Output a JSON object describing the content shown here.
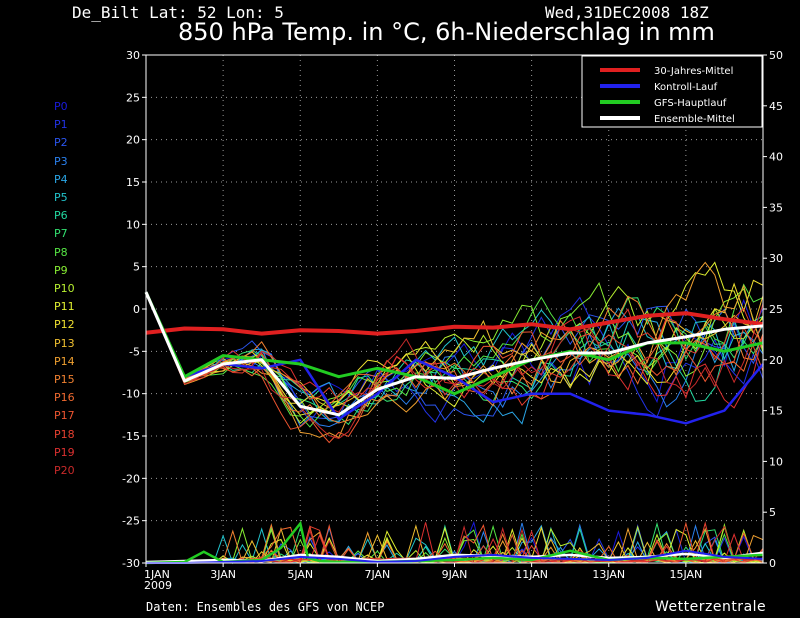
{
  "header": {
    "station": "De_Bilt   Lat: 52 Lon: 5",
    "timestamp": "Wed,31DEC2008 18Z",
    "title": "850 hPa Temp. in °C, 6h-Niederschlag in mm"
  },
  "footer": {
    "source": "Daten: Ensembles des GFS von NCEP",
    "brand": "Wetterzentrale"
  },
  "members": [
    {
      "label": "P0",
      "color": "#1a1adc"
    },
    {
      "label": "P1",
      "color": "#2233e6"
    },
    {
      "label": "P2",
      "color": "#2a55ee"
    },
    {
      "label": "P3",
      "color": "#2a80ee"
    },
    {
      "label": "P4",
      "color": "#2aa6e6"
    },
    {
      "label": "P5",
      "color": "#22c4cc"
    },
    {
      "label": "P6",
      "color": "#22d8a0"
    },
    {
      "label": "P7",
      "color": "#33e070"
    },
    {
      "label": "P8",
      "color": "#55e644"
    },
    {
      "label": "P9",
      "color": "#88ee33"
    },
    {
      "label": "P10",
      "color": "#b8f030"
    },
    {
      "label": "P11",
      "color": "#e0f030"
    },
    {
      "label": "P12",
      "color": "#f0e030"
    },
    {
      "label": "P13",
      "color": "#f0c030"
    },
    {
      "label": "P14",
      "color": "#f0a030"
    },
    {
      "label": "P15",
      "color": "#f08030"
    },
    {
      "label": "P16",
      "color": "#f06a30"
    },
    {
      "label": "P17",
      "color": "#ee5530"
    },
    {
      "label": "P18",
      "color": "#e64030"
    },
    {
      "label": "P19",
      "color": "#dc3030"
    },
    {
      "label": "P20",
      "color": "#c82a2a"
    }
  ],
  "chart_data": {
    "type": "line",
    "title": "850 hPa Temp. in °C, 6h-Niederschlag in mm",
    "xlim": [
      0,
      16
    ],
    "x_ticks": [
      {
        "x": 0,
        "label": "1JAN"
      },
      {
        "x": 2,
        "label": "3JAN"
      },
      {
        "x": 4,
        "label": "5JAN"
      },
      {
        "x": 6,
        "label": "7JAN"
      },
      {
        "x": 8,
        "label": "9JAN"
      },
      {
        "x": 10,
        "label": "11JAN"
      },
      {
        "x": 12,
        "label": "13JAN"
      },
      {
        "x": 14,
        "label": "15JAN"
      }
    ],
    "x_sublabel": "2009",
    "y_left": {
      "ylim": [
        -30,
        30
      ],
      "ticks": [
        30,
        25,
        20,
        15,
        10,
        5,
        0,
        -5,
        -10,
        -15,
        -20,
        -25,
        -30
      ]
    },
    "y_right": {
      "ylim": [
        0,
        50
      ],
      "ticks": [
        50,
        45,
        40,
        35,
        30,
        25,
        20,
        15,
        10,
        5,
        0
      ]
    },
    "grid": true,
    "legend_position": "top-right",
    "series": [
      {
        "name": "30-Jahres-Mittel",
        "color": "#e02020",
        "width": 4,
        "x": [
          0,
          1,
          2,
          3,
          4,
          5,
          6,
          7,
          8,
          9,
          10,
          11,
          12,
          13,
          14,
          15,
          16
        ],
        "y": [
          -2.8,
          -2.3,
          -2.4,
          -2.9,
          -2.5,
          -2.6,
          -2.9,
          -2.6,
          -2.1,
          -2.2,
          -1.8,
          -2.4,
          -1.6,
          -0.8,
          -0.5,
          -1.2,
          -1.8
        ]
      },
      {
        "name": "Kontroll-Lauf",
        "color": "#2222ee",
        "width": 2.5,
        "x": [
          0,
          1,
          2,
          3,
          4,
          5,
          6,
          7,
          8,
          9,
          10,
          11,
          12,
          13,
          14,
          15,
          16
        ],
        "y": [
          2,
          -8,
          -6.5,
          -7,
          -6,
          -13,
          -10,
          -6,
          -8,
          -11,
          -10,
          -10,
          -12,
          -12.5,
          -13.5,
          -12,
          -6.5
        ]
      },
      {
        "name": "GFS-Hauptlauf",
        "color": "#22cc22",
        "width": 3,
        "x": [
          0,
          1,
          2,
          3,
          4,
          5,
          6,
          7,
          8,
          9,
          10,
          11,
          12,
          13,
          14,
          15,
          16
        ],
        "y": [
          2,
          -8,
          -5.5,
          -6,
          -6.5,
          -8,
          -7,
          -8,
          -10,
          -8,
          -6,
          -5,
          -6,
          -4,
          -4,
          -5,
          -4
        ]
      },
      {
        "name": "Ensemble-Mittel",
        "color": "#ffffff",
        "width": 3,
        "x": [
          0,
          1,
          2,
          3,
          4,
          5,
          6,
          7,
          8,
          9,
          10,
          11,
          12,
          13,
          14,
          15,
          16
        ],
        "y": [
          2,
          -8.5,
          -6.5,
          -6,
          -11.5,
          -12.5,
          -9.5,
          -8,
          -8.2,
          -7,
          -6,
          -5.2,
          -5.2,
          -4,
          -3.3,
          -2.4,
          -2
        ]
      }
    ],
    "precip_series": [
      {
        "name": "Ensemble-Mittel",
        "color": "#ffffff",
        "width": 2.5,
        "x": [
          0,
          1,
          2,
          3,
          4,
          5,
          6,
          7,
          8,
          9,
          10,
          11,
          12,
          13,
          14,
          15,
          16
        ],
        "y": [
          0.1,
          0.2,
          0.3,
          0.2,
          0.8,
          0.6,
          0.2,
          0.4,
          0.8,
          0.7,
          0.6,
          0.8,
          0.5,
          0.6,
          0.9,
          0.5,
          1.0
        ]
      },
      {
        "name": "GFS-Hauptlauf",
        "color": "#22cc22",
        "width": 2.5,
        "x": [
          0,
          1,
          1.5,
          2,
          3,
          3.5,
          4,
          4.2,
          4.5,
          5,
          6,
          7,
          8,
          9,
          10,
          11,
          12,
          13,
          14,
          15,
          16
        ],
        "y": [
          0,
          0.1,
          1.1,
          0.1,
          0.3,
          1.5,
          3.9,
          0.5,
          0.2,
          0.1,
          0.1,
          0.2,
          0.3,
          0.5,
          0.3,
          1.2,
          0.3,
          0.5,
          0.4,
          0.6,
          0.8
        ]
      },
      {
        "name": "Kontroll-Lauf",
        "color": "#2222ee",
        "width": 2,
        "x": [
          0,
          1,
          2,
          3,
          4,
          5,
          6,
          7,
          8,
          9,
          10,
          11,
          12,
          13,
          14,
          15,
          16
        ],
        "y": [
          0,
          0,
          0.1,
          0.2,
          0.6,
          0.4,
          0.1,
          0.2,
          0.6,
          0.8,
          0.5,
          0.4,
          0.3,
          0.5,
          1.2,
          0.6,
          0.4
        ]
      }
    ]
  }
}
